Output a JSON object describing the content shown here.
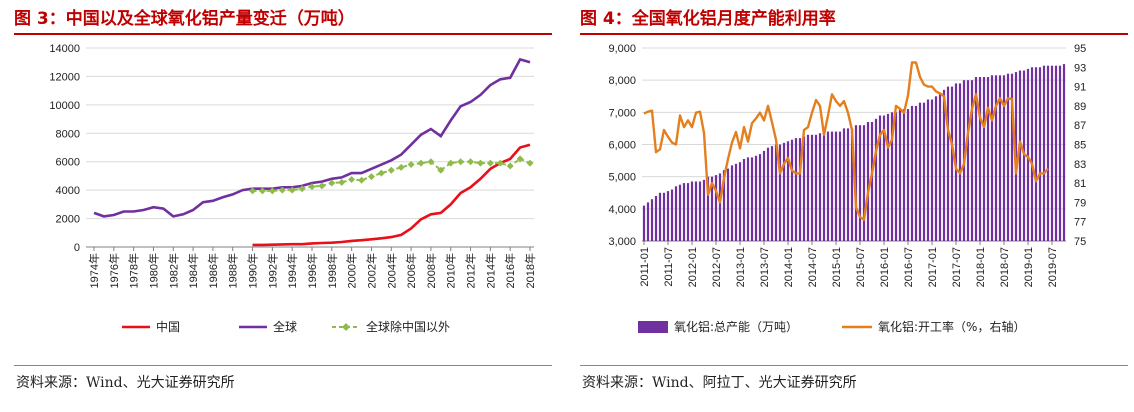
{
  "figures": {
    "left": {
      "title": "图 3：中国以及全球氧化铝产量变迁（万吨）",
      "source": "资料来源：Wind、光大证券研究所"
    },
    "right": {
      "title": "图 4：全国氧化铝月度产能利用率",
      "source": "资料来源：Wind、阿拉丁、光大证券研究所"
    }
  },
  "chart_data": [
    {
      "type": "line",
      "title": "",
      "xlabel": "",
      "ylabel": "",
      "ylim": [
        0,
        14000
      ],
      "yticks": [
        0,
        2000,
        4000,
        6000,
        8000,
        10000,
        12000,
        14000
      ],
      "grid": "horizontal",
      "legend_position": "bottom",
      "x": [
        1974,
        1975,
        1976,
        1977,
        1978,
        1979,
        1980,
        1981,
        1982,
        1983,
        1984,
        1985,
        1986,
        1987,
        1988,
        1989,
        1990,
        1991,
        1992,
        1993,
        1994,
        1995,
        1996,
        1997,
        1998,
        1999,
        2000,
        2001,
        2002,
        2003,
        2004,
        2005,
        2006,
        2007,
        2008,
        2009,
        2010,
        2011,
        2012,
        2013,
        2014,
        2015,
        2016,
        2017,
        2018
      ],
      "xtick_labels": [
        "1974年",
        "1976年",
        "1978年",
        "1980年",
        "1982年",
        "1984年",
        "1986年",
        "1988年",
        "1990年",
        "1992年",
        "1994年",
        "1996年",
        "1998年",
        "2000年",
        "2002年",
        "2004年",
        "2006年",
        "2008年",
        "2010年",
        "2012年",
        "2014年",
        "2016年",
        "2018年"
      ],
      "series": [
        {
          "name": "中国",
          "color": "#e8101a",
          "marker": "none",
          "values": [
            null,
            null,
            null,
            null,
            null,
            null,
            null,
            null,
            null,
            null,
            null,
            null,
            null,
            null,
            null,
            null,
            150,
            150,
            160,
            180,
            200,
            200,
            250,
            280,
            300,
            350,
            430,
            480,
            540,
            610,
            700,
            850,
            1300,
            1950,
            2300,
            2400,
            3000,
            3800,
            4200,
            4800,
            5500,
            5900,
            6200,
            7000,
            7200
          ]
        },
        {
          "name": "全球",
          "color": "#7030a0",
          "marker": "none",
          "values": [
            2400,
            2150,
            2250,
            2500,
            2500,
            2600,
            2800,
            2700,
            2150,
            2300,
            2600,
            3150,
            3250,
            3500,
            3700,
            4000,
            4100,
            4100,
            4100,
            4200,
            4200,
            4300,
            4500,
            4600,
            4800,
            4900,
            5200,
            5200,
            5500,
            5800,
            6100,
            6500,
            7200,
            7900,
            8300,
            7800,
            8900,
            9900,
            10200,
            10700,
            11400,
            11800,
            11900,
            13200,
            13000
          ]
        },
        {
          "name": "全球除中国以外",
          "color": "#8fbb4b",
          "marker": "diamond",
          "dash": "dashed",
          "values": [
            null,
            null,
            null,
            null,
            null,
            null,
            null,
            null,
            null,
            null,
            null,
            null,
            null,
            null,
            null,
            null,
            3950,
            3950,
            3950,
            4000,
            4000,
            4100,
            4250,
            4300,
            4500,
            4550,
            4750,
            4700,
            4950,
            5200,
            5400,
            5600,
            5800,
            5900,
            6000,
            5400,
            5900,
            6000,
            6000,
            5900,
            5900,
            5900,
            5700,
            6200,
            5900
          ]
        }
      ]
    },
    {
      "type": "bar+line",
      "title": "",
      "xlabel": "",
      "ylabel": "",
      "ylim": [
        3000,
        9000
      ],
      "yticks": [
        3000,
        4000,
        5000,
        6000,
        7000,
        8000,
        9000
      ],
      "ytick_labels": [
        "3,000",
        "4,000",
        "5,000",
        "6,000",
        "7,000",
        "8,000",
        "9,000"
      ],
      "y2lim": [
        75,
        95
      ],
      "y2ticks": [
        75,
        77,
        79,
        81,
        83,
        85,
        87,
        89,
        91,
        93,
        95
      ],
      "grid": "horizontal",
      "legend_position": "bottom",
      "xtick_labels": [
        "2011-01",
        "2011-07",
        "2012-01",
        "2012-07",
        "2013-01",
        "2013-07",
        "2014-01",
        "2014-07",
        "2015-01",
        "2015-07",
        "2016-01",
        "2016-07",
        "2017-01",
        "2017-07",
        "2018-01",
        "2018-07",
        "2019-01",
        "2019-07"
      ],
      "series": [
        {
          "name": "氧化铝:总产能（万吨）",
          "color": "#7030a0",
          "axis": "left",
          "kind": "bar",
          "values": [
            4100,
            4200,
            4300,
            4400,
            4500,
            4500,
            4550,
            4600,
            4700,
            4750,
            4800,
            4800,
            4850,
            4850,
            4850,
            4900,
            5000,
            5000,
            5050,
            5100,
            5200,
            5250,
            5350,
            5400,
            5450,
            5550,
            5600,
            5600,
            5650,
            5700,
            5800,
            5900,
            5950,
            6000,
            6000,
            6050,
            6100,
            6150,
            6200,
            6200,
            6250,
            6300,
            6300,
            6300,
            6350,
            6400,
            6400,
            6400,
            6400,
            6400,
            6500,
            6500,
            6500,
            6600,
            6600,
            6600,
            6700,
            6700,
            6800,
            6900,
            6900,
            6950,
            7000,
            7000,
            7100,
            7100,
            7100,
            7200,
            7200,
            7300,
            7300,
            7400,
            7400,
            7500,
            7600,
            7700,
            7800,
            7800,
            7900,
            7900,
            8000,
            8000,
            8000,
            8100,
            8100,
            8100,
            8100,
            8150,
            8150,
            8150,
            8150,
            8200,
            8200,
            8250,
            8300,
            8300,
            8350,
            8400,
            8400,
            8400,
            8450,
            8450,
            8450,
            8450,
            8450,
            8500
          ]
        },
        {
          "name": "氧化铝:开工率（%，右轴）",
          "color": "#e57f1d",
          "axis": "right",
          "kind": "line",
          "values": [
            88.2,
            88.4,
            88.5,
            84.2,
            84.5,
            86.5,
            85.8,
            85.2,
            85,
            88,
            86.8,
            87.5,
            86.8,
            88.3,
            88.4,
            86.2,
            79.8,
            81,
            80.2,
            79,
            81.5,
            83.5,
            85.2,
            86.3,
            84.6,
            86.8,
            85.3,
            87.2,
            87.7,
            88.3,
            87.5,
            89,
            87.3,
            85.5,
            82,
            83,
            83.6,
            82.3,
            82,
            82,
            86.5,
            86.8,
            88.3,
            89.6,
            89,
            86,
            88,
            90.2,
            89.5,
            89,
            89.5,
            88.3,
            86.5,
            78.5,
            77.5,
            77.2,
            80,
            82,
            84.3,
            86,
            86.5,
            84.7,
            85.5,
            89,
            88.7,
            88.3,
            90.1,
            93.5,
            93.5,
            92,
            91.2,
            91,
            91,
            90.5,
            90.3,
            90,
            86.5,
            85,
            82.5,
            82,
            83,
            86.2,
            88.7,
            90.2,
            87.8,
            86.8,
            88.8,
            87.5,
            89,
            89.8,
            89,
            89.8,
            89.7,
            82,
            85.3,
            84,
            83.7,
            83,
            81.2,
            82,
            82,
            82.5
          ]
        }
      ]
    }
  ]
}
